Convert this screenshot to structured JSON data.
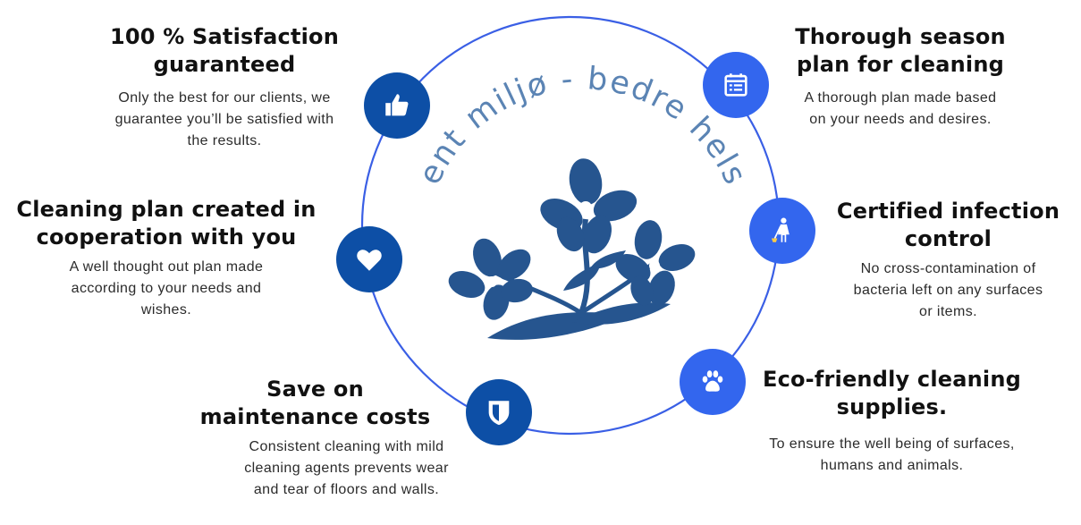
{
  "colors": {
    "ring": "#3a5fe5",
    "icon_dark": "#0d4fa6",
    "icon_light": "#3366ee",
    "flower": "#26558f",
    "logo_text": "#5b84b4"
  },
  "logo": {
    "text": "Rent miljø - bedre helse"
  },
  "features": {
    "satisfaction": {
      "icon": "thumbs-up-icon",
      "title": [
        "100 % Satisfaction",
        "guaranteed"
      ],
      "body": [
        "Only the best for our clients, we",
        "guarantee you’ll be satisfied with",
        "the results."
      ]
    },
    "cooperation": {
      "icon": "heart-icon",
      "title": [
        "Cleaning plan created in",
        "cooperation with you"
      ],
      "body": [
        "A well thought out plan made",
        "according to your needs and",
        "wishes."
      ]
    },
    "maintenance": {
      "icon": "shield-icon",
      "title": [
        "Save on",
        "maintenance costs"
      ],
      "body": [
        "Consistent cleaning with mild",
        "cleaning agents prevents wear",
        "and tear of floors and walls."
      ]
    },
    "season_plan": {
      "icon": "calendar-icon",
      "title": [
        "Thorough season",
        "plan for cleaning"
      ],
      "body": [
        "A thorough plan made based",
        "on your needs and desires."
      ]
    },
    "infection": {
      "icon": "cleaning-person-icon",
      "title": [
        "Certified infection",
        "control"
      ],
      "body": [
        "No cross-contamination of",
        "bacteria left on any surfaces",
        "or items."
      ]
    },
    "eco": {
      "icon": "paw-icon",
      "title": [
        "Eco-friendly cleaning",
        "supplies."
      ],
      "body": [
        "To ensure the well being of surfaces,",
        "humans and animals."
      ]
    }
  }
}
